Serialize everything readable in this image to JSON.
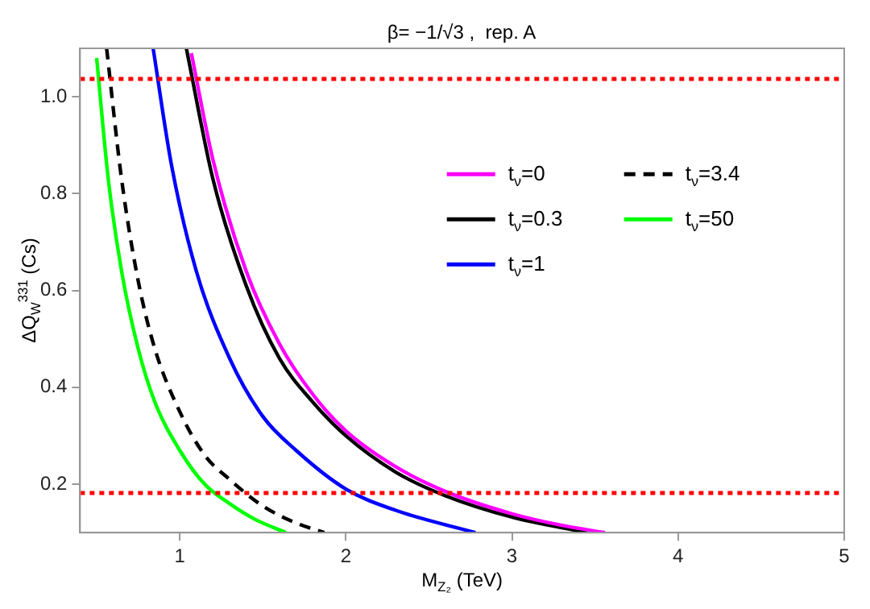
{
  "chart_data": {
    "type": "line",
    "title": "β= −1/√3 ,  rep. A",
    "xlabel": "M$_{Z₂}$ (TeV)",
    "ylabel": "ΔQ$_{W}$$^{331}$ (Cs)",
    "xlim": [
      0.4,
      5
    ],
    "ylim": [
      0.1,
      1.1
    ],
    "xticks": [
      1,
      2,
      3,
      4,
      5
    ],
    "yticks": [
      0.2,
      0.4,
      0.6,
      0.8,
      {
        "value": 1,
        "label": "1.0"
      }
    ],
    "grid": false,
    "legend": "right",
    "marker": "none",
    "ref_lines": [
      {
        "axis": "y",
        "value": 1.037,
        "color": "#ff0000",
        "line_style": "dotted"
      },
      {
        "axis": "y",
        "value": 0.182,
        "color": "#ff0000",
        "line_style": "dotted"
      }
    ],
    "series": [
      {
        "name": "t$_{ν}$=0",
        "color": "#ff00ff",
        "line_style": "solid",
        "x": [
          1.07,
          1.2,
          1.4,
          1.6,
          1.8,
          2.0,
          2.3,
          2.6,
          3.0,
          3.3,
          3.56
        ],
        "values": [
          1.09,
          0.87,
          0.64,
          0.49,
          0.386,
          0.31,
          0.236,
          0.185,
          0.139,
          0.115,
          0.1
        ]
      },
      {
        "name": "t$_{ν}$=0.3",
        "color": "#000000",
        "line_style": "solid",
        "x": [
          1.04,
          1.2,
          1.4,
          1.6,
          1.8,
          2.0,
          2.3,
          2.6,
          3.0,
          3.45
        ],
        "values": [
          1.1,
          0.83,
          0.61,
          0.46,
          0.37,
          0.3,
          0.225,
          0.176,
          0.132,
          0.1
        ]
      },
      {
        "name": "t$_{ν}$=1",
        "color": "#0000ff",
        "line_style": "solid",
        "x": [
          0.84,
          0.95,
          1.1,
          1.3,
          1.5,
          1.7,
          2.0,
          2.3,
          2.78
        ],
        "values": [
          1.1,
          0.86,
          0.64,
          0.46,
          0.34,
          0.27,
          0.19,
          0.146,
          0.1
        ]
      },
      {
        "name": "t$_{ν}$=3.4",
        "color": "#000000",
        "line_style": "dashed",
        "x": [
          0.56,
          0.65,
          0.75,
          0.85,
          1.0,
          1.15,
          1.3,
          1.5,
          1.7,
          1.87
        ],
        "values": [
          1.1,
          0.83,
          0.62,
          0.48,
          0.35,
          0.26,
          0.21,
          0.155,
          0.12,
          0.1
        ]
      },
      {
        "name": "t$_{ν}$=50",
        "color": "#00ff00",
        "line_style": "solid",
        "x": [
          0.5,
          0.57,
          0.65,
          0.75,
          0.85,
          1.0,
          1.15,
          1.3,
          1.45,
          1.64
        ],
        "values": [
          1.08,
          0.83,
          0.64,
          0.48,
          0.37,
          0.27,
          0.2,
          0.16,
          0.128,
          0.1
        ]
      }
    ]
  }
}
